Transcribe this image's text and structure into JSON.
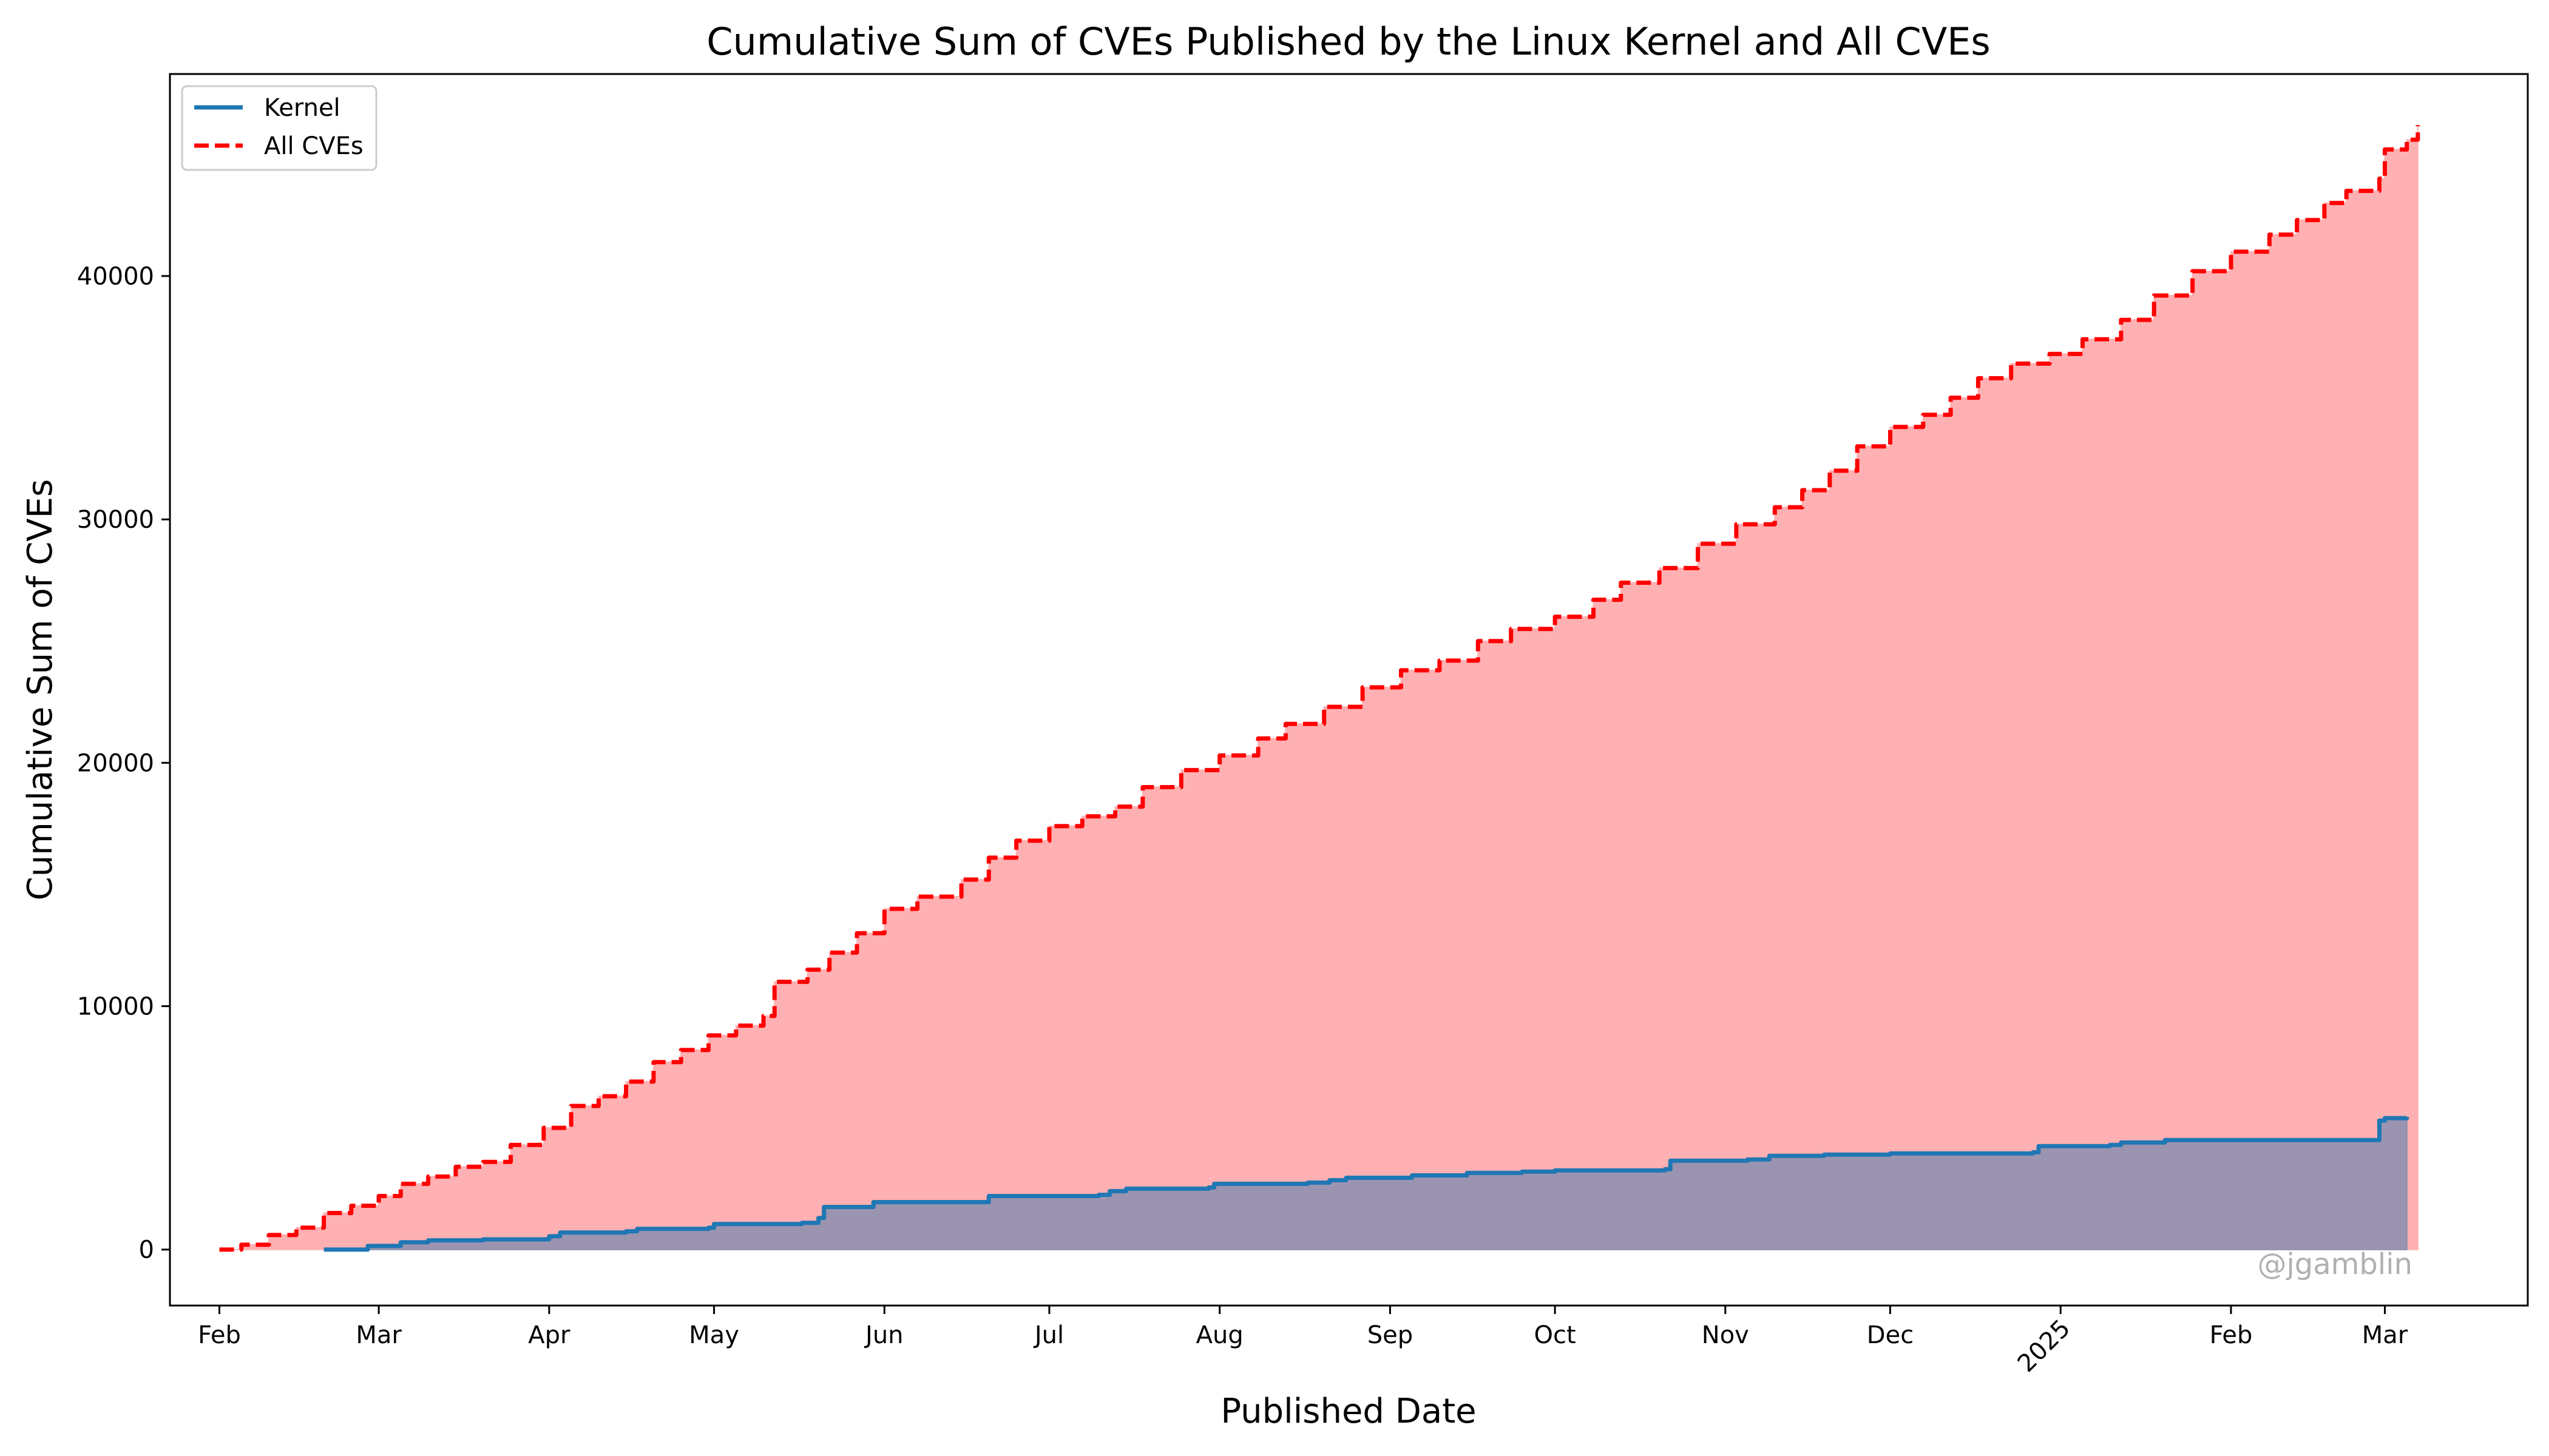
{
  "chart_data": {
    "type": "area",
    "title": "Cumulative Sum of CVEs Published by the Linux Kernel and All CVEs",
    "xlabel": "Published Date",
    "ylabel": "Cumulative Sum of CVEs",
    "xlim": [
      "2024-01-23",
      "2025-03-27"
    ],
    "ylim": [
      -2300,
      48300
    ],
    "x_ticks": [
      {
        "date": "2024-02-01",
        "label": "Feb"
      },
      {
        "date": "2024-03-01",
        "label": "Mar"
      },
      {
        "date": "2024-04-01",
        "label": "Apr"
      },
      {
        "date": "2024-05-01",
        "label": "May"
      },
      {
        "date": "2024-06-01",
        "label": "Jun"
      },
      {
        "date": "2024-07-01",
        "label": "Jul"
      },
      {
        "date": "2024-08-01",
        "label": "Aug"
      },
      {
        "date": "2024-09-01",
        "label": "Sep"
      },
      {
        "date": "2024-10-01",
        "label": "Oct"
      },
      {
        "date": "2024-11-01",
        "label": "Nov"
      },
      {
        "date": "2024-12-01",
        "label": "Dec"
      },
      {
        "date": "2025-01-01",
        "label": "2025",
        "rotated": true
      },
      {
        "date": "2025-02-01",
        "label": "Feb"
      },
      {
        "date": "2025-03-01",
        "label": "Mar"
      }
    ],
    "y_ticks": [
      0,
      10000,
      20000,
      30000,
      40000
    ],
    "legend": {
      "placement": "top-left"
    },
    "grid": false,
    "series": [
      {
        "name": "Kernel",
        "style": "solid",
        "color": "#1f77b4",
        "fill": "#8a8fb0",
        "points": [
          [
            "2024-02-20",
            0
          ],
          [
            "2024-02-28",
            150
          ],
          [
            "2024-03-05",
            300
          ],
          [
            "2024-03-10",
            380
          ],
          [
            "2024-03-20",
            420
          ],
          [
            "2024-04-01",
            550
          ],
          [
            "2024-04-03",
            700
          ],
          [
            "2024-04-15",
            750
          ],
          [
            "2024-04-17",
            850
          ],
          [
            "2024-04-30",
            900
          ],
          [
            "2024-05-01",
            1050
          ],
          [
            "2024-05-17",
            1100
          ],
          [
            "2024-05-20",
            1300
          ],
          [
            "2024-05-21",
            1750
          ],
          [
            "2024-05-30",
            1950
          ],
          [
            "2024-06-18",
            1950
          ],
          [
            "2024-06-20",
            2200
          ],
          [
            "2024-07-10",
            2250
          ],
          [
            "2024-07-12",
            2400
          ],
          [
            "2024-07-15",
            2500
          ],
          [
            "2024-07-30",
            2550
          ],
          [
            "2024-07-31",
            2700
          ],
          [
            "2024-08-17",
            2750
          ],
          [
            "2024-08-21",
            2850
          ],
          [
            "2024-08-24",
            2950
          ],
          [
            "2024-09-05",
            3050
          ],
          [
            "2024-09-15",
            3150
          ],
          [
            "2024-09-25",
            3200
          ],
          [
            "2024-10-01",
            3250
          ],
          [
            "2024-10-21",
            3300
          ],
          [
            "2024-10-22",
            3650
          ],
          [
            "2024-11-05",
            3700
          ],
          [
            "2024-11-09",
            3850
          ],
          [
            "2024-11-19",
            3900
          ],
          [
            "2024-12-01",
            3950
          ],
          [
            "2024-12-27",
            4000
          ],
          [
            "2024-12-28",
            4250
          ],
          [
            "2025-01-10",
            4300
          ],
          [
            "2025-01-12",
            4400
          ],
          [
            "2025-01-20",
            4500
          ],
          [
            "2025-02-28",
            4550
          ],
          [
            "2025-02-28",
            5300
          ],
          [
            "2025-03-01",
            5400
          ],
          [
            "2025-03-05",
            5450
          ]
        ]
      },
      {
        "name": "All CVEs",
        "style": "dashed",
        "color": "#ff0000",
        "fill": "#ffb0b2",
        "points": [
          [
            "2024-02-01",
            0
          ],
          [
            "2024-02-05",
            200
          ],
          [
            "2024-02-10",
            600
          ],
          [
            "2024-02-15",
            900
          ],
          [
            "2024-02-20",
            1500
          ],
          [
            "2024-02-25",
            1800
          ],
          [
            "2024-03-01",
            2200
          ],
          [
            "2024-03-05",
            2700
          ],
          [
            "2024-03-10",
            3000
          ],
          [
            "2024-03-15",
            3400
          ],
          [
            "2024-03-20",
            3600
          ],
          [
            "2024-03-25",
            4300
          ],
          [
            "2024-03-31",
            5000
          ],
          [
            "2024-04-05",
            5900
          ],
          [
            "2024-04-10",
            6300
          ],
          [
            "2024-04-15",
            6900
          ],
          [
            "2024-04-20",
            7700
          ],
          [
            "2024-04-25",
            8200
          ],
          [
            "2024-04-30",
            8800
          ],
          [
            "2024-05-05",
            9200
          ],
          [
            "2024-05-10",
            9600
          ],
          [
            "2024-05-12",
            11000
          ],
          [
            "2024-05-18",
            11500
          ],
          [
            "2024-05-22",
            12200
          ],
          [
            "2024-05-27",
            13000
          ],
          [
            "2024-06-01",
            14000
          ],
          [
            "2024-06-07",
            14500
          ],
          [
            "2024-06-15",
            15200
          ],
          [
            "2024-06-20",
            16100
          ],
          [
            "2024-06-25",
            16800
          ],
          [
            "2024-07-01",
            17400
          ],
          [
            "2024-07-07",
            17800
          ],
          [
            "2024-07-13",
            18200
          ],
          [
            "2024-07-18",
            19000
          ],
          [
            "2024-07-25",
            19700
          ],
          [
            "2024-08-01",
            20300
          ],
          [
            "2024-08-08",
            21000
          ],
          [
            "2024-08-13",
            21600
          ],
          [
            "2024-08-20",
            22300
          ],
          [
            "2024-08-27",
            23100
          ],
          [
            "2024-09-03",
            23800
          ],
          [
            "2024-09-10",
            24200
          ],
          [
            "2024-09-17",
            25000
          ],
          [
            "2024-09-23",
            25500
          ],
          [
            "2024-10-01",
            26000
          ],
          [
            "2024-10-08",
            26700
          ],
          [
            "2024-10-13",
            27400
          ],
          [
            "2024-10-20",
            28000
          ],
          [
            "2024-10-27",
            29000
          ],
          [
            "2024-11-03",
            29800
          ],
          [
            "2024-11-10",
            30500
          ],
          [
            "2024-11-15",
            31200
          ],
          [
            "2024-11-20",
            32000
          ],
          [
            "2024-11-25",
            33000
          ],
          [
            "2024-12-01",
            33800
          ],
          [
            "2024-12-07",
            34300
          ],
          [
            "2024-12-12",
            35000
          ],
          [
            "2024-12-17",
            35800
          ],
          [
            "2024-12-23",
            36400
          ],
          [
            "2024-12-30",
            36800
          ],
          [
            "2025-01-05",
            37400
          ],
          [
            "2025-01-12",
            38200
          ],
          [
            "2025-01-18",
            39200
          ],
          [
            "2025-01-25",
            40200
          ],
          [
            "2025-02-01",
            41000
          ],
          [
            "2025-02-08",
            41700
          ],
          [
            "2025-02-13",
            42300
          ],
          [
            "2025-02-18",
            43000
          ],
          [
            "2025-02-22",
            43500
          ],
          [
            "2025-02-28",
            44000
          ],
          [
            "2025-03-01",
            45200
          ],
          [
            "2025-03-05",
            45600
          ],
          [
            "2025-03-07",
            46200
          ]
        ]
      }
    ]
  },
  "watermark": "@jgamblin",
  "legend": {
    "kernel_label": "Kernel",
    "all_label": "All CVEs"
  }
}
